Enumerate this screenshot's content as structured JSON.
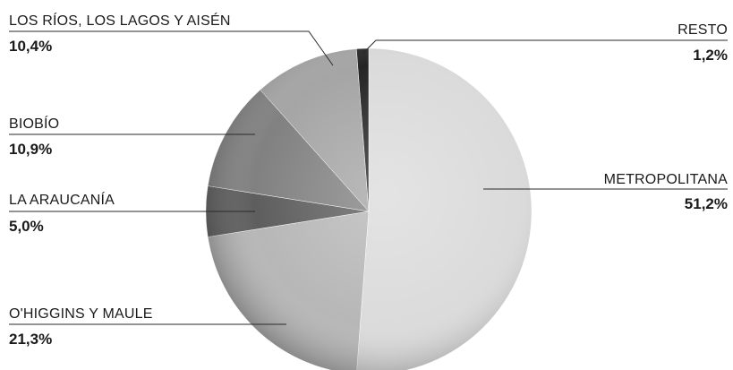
{
  "chart_data": {
    "type": "pie",
    "title": "",
    "slices": [
      {
        "label": "METROPOLITANA",
        "value": 51.2,
        "value_label": "51,2%",
        "color": "#d9d9d9"
      },
      {
        "label": "O'HIGGINS Y MAULE",
        "value": 21.3,
        "value_label": "21,3%",
        "color": "#b3b3b3"
      },
      {
        "label": "LA ARAUCANÍA",
        "value": 5.0,
        "value_label": "5,0%",
        "color": "#555555"
      },
      {
        "label": "BIOBÍO",
        "value": 10.9,
        "value_label": "10,9%",
        "color": "#7a7a7a"
      },
      {
        "label": "LOS RÍOS, LOS LAGOS Y AISÉN",
        "value": 10.4,
        "value_label": "10,4%",
        "color": "#a0a0a0"
      },
      {
        "label": "RESTO",
        "value": 1.2,
        "value_label": "1,2%",
        "color": "#1a1a1a"
      }
    ],
    "start_angle": "12 o'clock",
    "direction": "clockwise",
    "legend": "none",
    "labels": "outside with leader lines"
  }
}
